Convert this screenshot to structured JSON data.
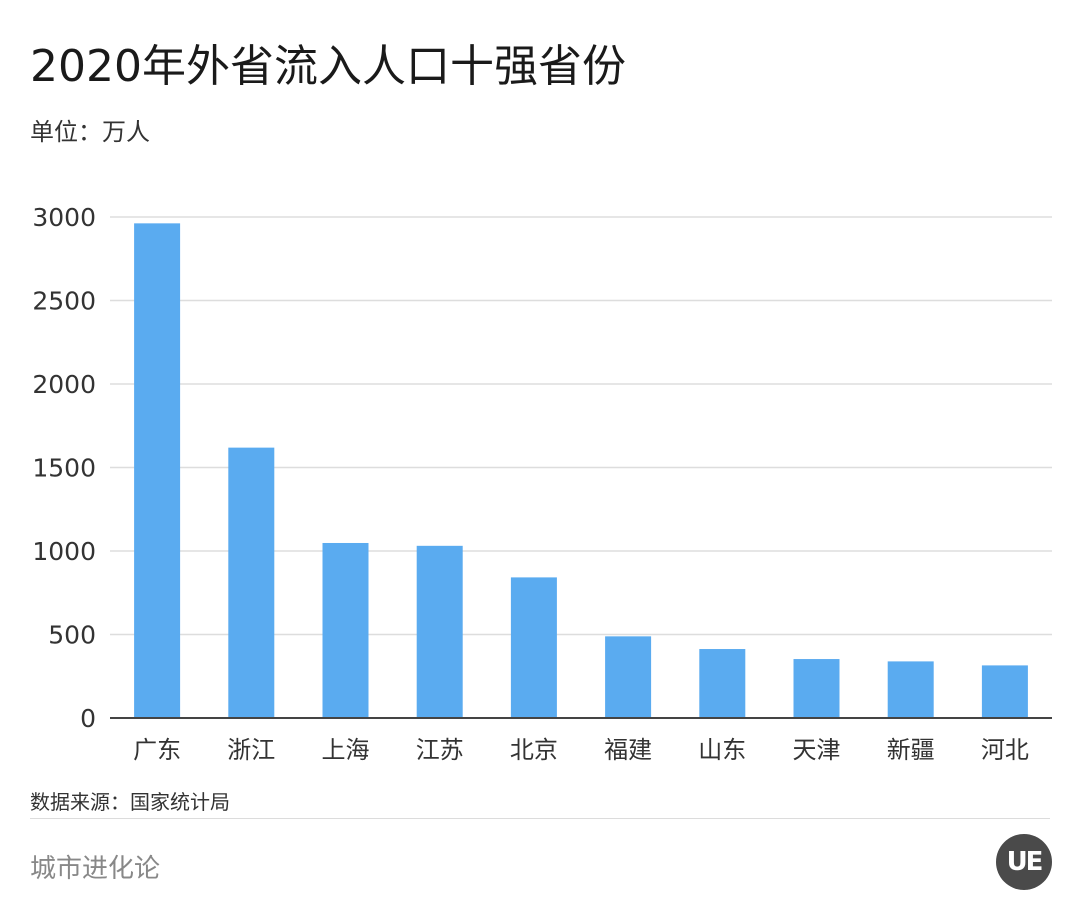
{
  "title": "2020年外省流入人口十强省份",
  "unit_label": "单位：万人",
  "source": "数据来源：国家统计局",
  "brand": "城市进化论",
  "logo_text": "UE",
  "colors": {
    "bar": "#5aabf0",
    "grid": "#dddddd",
    "axis": "#444444",
    "logo_bg": "#4a4a4a"
  },
  "chart_data": {
    "type": "bar",
    "categories": [
      "广东",
      "浙江",
      "上海",
      "江苏",
      "北京",
      "福建",
      "山东",
      "天津",
      "新疆",
      "河北"
    ],
    "values": [
      2962,
      1619,
      1048,
      1031,
      842,
      489,
      413,
      353,
      339,
      315
    ],
    "yticks": [
      0,
      500,
      1000,
      1500,
      2000,
      2500,
      3000
    ],
    "ylim": [
      0,
      3000
    ],
    "grid": true,
    "legend": "none"
  }
}
